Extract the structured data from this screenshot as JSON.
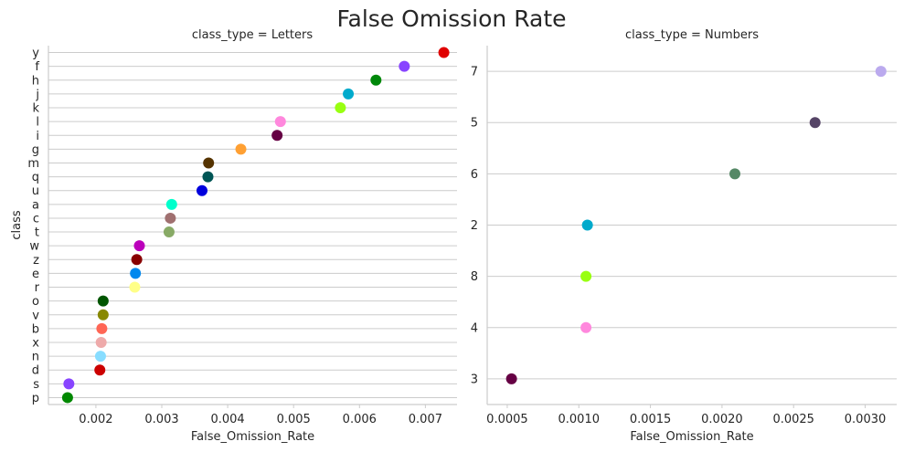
{
  "title": "False Omission Rate",
  "chart_data": [
    {
      "type": "scatter",
      "panel_title": "class_type = Letters",
      "xlabel": "False_Omission_Rate",
      "ylabel": "class",
      "xlim": [
        0.00128,
        0.00748
      ],
      "xticks": [
        "0.002",
        "0.003",
        "0.004",
        "0.005",
        "0.006",
        "0.007"
      ],
      "xtick_values": [
        0.002,
        0.003,
        0.004,
        0.005,
        0.006,
        0.007
      ],
      "grid": "horizontal",
      "categories": [
        "y",
        "f",
        "h",
        "j",
        "k",
        "l",
        "i",
        "g",
        "m",
        "q",
        "u",
        "a",
        "c",
        "t",
        "w",
        "z",
        "e",
        "r",
        "o",
        "v",
        "b",
        "x",
        "n",
        "d",
        "s",
        "p"
      ],
      "values": [
        0.00728,
        0.00668,
        0.00625,
        0.00583,
        0.00571,
        0.0048,
        0.00475,
        0.0042,
        0.00371,
        0.0037,
        0.00361,
        0.00315,
        0.00313,
        0.00311,
        0.00266,
        0.00262,
        0.0026,
        0.00259,
        0.00211,
        0.00211,
        0.00209,
        0.00208,
        0.00207,
        0.00206,
        0.00159,
        0.00157
      ],
      "colors": [
        "#e00000",
        "#8844ff",
        "#00880a",
        "#00aacc",
        "#99ff11",
        "#ff88dd",
        "#660044",
        "#ffa033",
        "#553300",
        "#005555",
        "#0000dd",
        "#00ffcc",
        "#a07070",
        "#88aa66",
        "#bb00bb",
        "#880000",
        "#0088ee",
        "#ffff88",
        "#005500",
        "#888800",
        "#ff6655",
        "#eeaaaa",
        "#88ddff",
        "#cc0000",
        "#8844ff",
        "#008800"
      ]
    },
    {
      "type": "scatter",
      "panel_title": "class_type = Numbers",
      "xlabel": "False_Omission_Rate",
      "ylabel": "",
      "xlim": [
        0.00036,
        0.00322
      ],
      "xticks": [
        "0.0005",
        "0.0010",
        "0.0015",
        "0.0020",
        "0.0025",
        "0.0030"
      ],
      "xtick_values": [
        0.0005,
        0.001,
        0.0015,
        0.002,
        0.0025,
        0.003
      ],
      "grid": "horizontal",
      "categories": [
        "7",
        "5",
        "6",
        "2",
        "8",
        "4",
        "3"
      ],
      "values": [
        0.00311,
        0.00265,
        0.00209,
        0.00106,
        0.00105,
        0.00105,
        0.00053
      ],
      "colors": [
        "#bbaaee",
        "#554466",
        "#558866",
        "#00aacc",
        "#99ff11",
        "#ff88dd",
        "#660044"
      ]
    }
  ]
}
